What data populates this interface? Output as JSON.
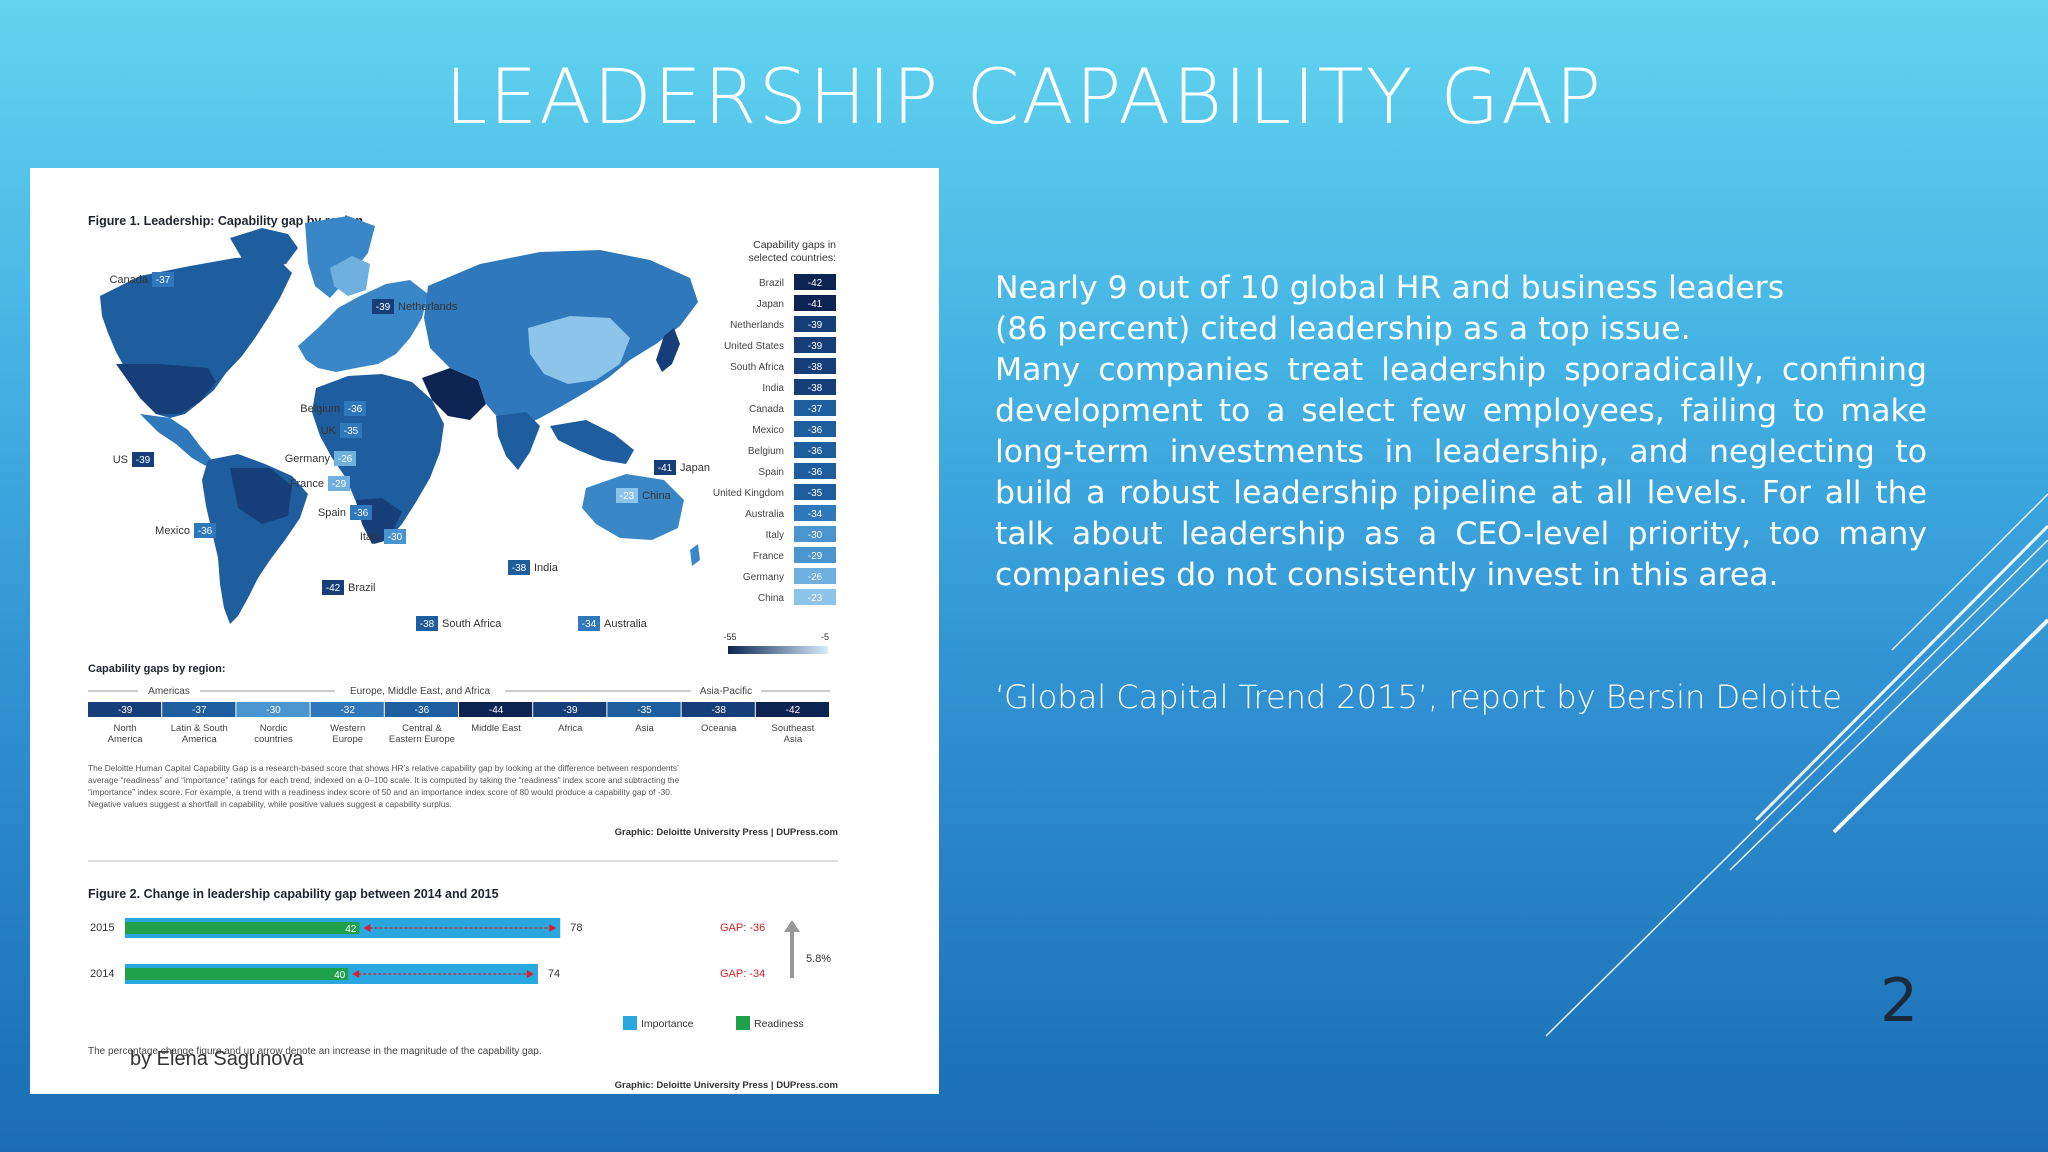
{
  "slide": {
    "title": "LEADERSHIP CAPABILITY GAP",
    "body_lines": [
      "Nearly 9 out of 10 global HR and business leaders",
      "(86 percent) cited leadership as a top issue."
    ],
    "body_paragraph": "Many companies treat leadership sporadically, confining development to a select few employees, failing to make long-term investments in leadership, and neglecting to build a robust leadership pipeline at all levels. For all the talk about leadership as a CEO-level priority, too many companies do not consistently invest in this area.",
    "citation": "‘Global Capital Trend 2015’, report by Bersin Deloitte",
    "page_number": "2",
    "author": "by Elena Sagunova"
  },
  "figure1": {
    "title": "Figure 1. Leadership: Capability gap by region",
    "legend_title_1": "Capability gaps in",
    "legend_title_2": "selected countries:",
    "scale_min": "-55",
    "scale_max": "-5",
    "countries": [
      {
        "name": "Brazil",
        "value": "-42"
      },
      {
        "name": "Japan",
        "value": "-41"
      },
      {
        "name": "Netherlands",
        "value": "-39"
      },
      {
        "name": "United States",
        "value": "-39"
      },
      {
        "name": "South Africa",
        "value": "-38"
      },
      {
        "name": "India",
        "value": "-38"
      },
      {
        "name": "Canada",
        "value": "-37"
      },
      {
        "name": "Mexico",
        "value": "-36"
      },
      {
        "name": "Belgium",
        "value": "-36"
      },
      {
        "name": "Spain",
        "value": "-36"
      },
      {
        "name": "United Kingdom",
        "value": "-35"
      },
      {
        "name": "Australia",
        "value": "-34"
      },
      {
        "name": "Italy",
        "value": "-30"
      },
      {
        "name": "France",
        "value": "-29"
      },
      {
        "name": "Germany",
        "value": "-26"
      },
      {
        "name": "China",
        "value": "-23"
      }
    ],
    "map_labels": [
      {
        "name": "Canada",
        "value": "-37"
      },
      {
        "name": "Netherlands",
        "value": "-39"
      },
      {
        "name": "Belgium",
        "value": "-36"
      },
      {
        "name": "UK",
        "value": "-35"
      },
      {
        "name": "US",
        "value": "-39"
      },
      {
        "name": "Germany",
        "value": "-26"
      },
      {
        "name": "France",
        "value": "-29"
      },
      {
        "name": "Spain",
        "value": "-36"
      },
      {
        "name": "Italy",
        "value": "-30"
      },
      {
        "name": "Mexico",
        "value": "-36"
      },
      {
        "name": "Japan",
        "value": "-41"
      },
      {
        "name": "China",
        "value": "-23"
      },
      {
        "name": "India",
        "value": "-38"
      },
      {
        "name": "Brazil",
        "value": "-42"
      },
      {
        "name": "South Africa",
        "value": "-38"
      },
      {
        "name": "Australia",
        "value": "-34"
      }
    ],
    "regions_title": "Capability gaps by region:",
    "region_groups": [
      "Americas",
      "Europe, Middle East, and Africa",
      "Asia-Pacific"
    ],
    "regions": [
      {
        "name1": "North",
        "name2": "America",
        "value": "-39"
      },
      {
        "name1": "Latin & South",
        "name2": "America",
        "value": "-37"
      },
      {
        "name1": "Nordic",
        "name2": "countries",
        "value": "-30"
      },
      {
        "name1": "Western",
        "name2": "Europe",
        "value": "-32"
      },
      {
        "name1": "Central &",
        "name2": "Eastern Europe",
        "value": "-36"
      },
      {
        "name1": "Middle East",
        "name2": "",
        "value": "-44"
      },
      {
        "name1": "Africa",
        "name2": "",
        "value": "-39"
      },
      {
        "name1": "Asia",
        "name2": "",
        "value": "-35"
      },
      {
        "name1": "Oceania",
        "name2": "",
        "value": "-38"
      },
      {
        "name1": "Southeast",
        "name2": "Asia",
        "value": "-42"
      }
    ],
    "note_lines": [
      "The Deloitte Human Capital Capability Gap is a research-based score that shows HR’s relative capability gap by looking at the difference between respondents’",
      "average “readiness” and “importance” ratings for each trend, indexed on a 0–100 scale. It is computed by taking the “readiness” index score and subtracting the",
      "“importance” index score. For example, a trend with a readiness index score of 50 and an importance index score of 80 would produce a capability gap of -30.",
      "Negative values suggest a shortfall in capability, while positive values suggest a capability surplus."
    ],
    "credit": "Graphic: Deloitte University Press  |  DUPress.com"
  },
  "chart_data": {
    "type": "bar",
    "title": "Figure 2. Change in leadership capability gap between 2014 and 2015",
    "categories": [
      "2015",
      "2014"
    ],
    "series": [
      {
        "name": "Importance",
        "values": [
          78,
          74
        ]
      },
      {
        "name": "Readiness",
        "values": [
          42,
          40
        ]
      }
    ],
    "annotations": {
      "gaps": [
        "GAP: -36",
        "GAP: -34"
      ],
      "change": "5.8%"
    },
    "legend": [
      "Importance",
      "Readiness"
    ],
    "note": "The percentage change figure and up arrow denote an increase in the magnitude of the capability gap.",
    "credit": "Graphic: Deloitte University Press  |  DUPress.com",
    "xlim": [
      0,
      100
    ],
    "colors": {
      "importance": "#29a8e0",
      "readiness": "#1fa04a",
      "gap": "#d8202a"
    }
  }
}
